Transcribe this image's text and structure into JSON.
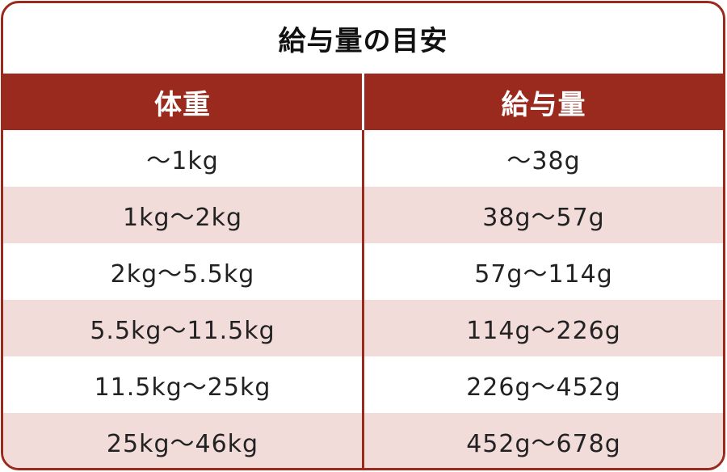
{
  "title": "給与量の目安",
  "headers": [
    "体重",
    "給与量"
  ],
  "rows": [
    [
      "～1kg",
      "～38g"
    ],
    [
      "1kg～2kg",
      "38g～57g"
    ],
    [
      "2kg～5.5kg",
      "57g～114g"
    ],
    [
      "5.5kg～11.5kg",
      "114g～226g"
    ],
    [
      "11.5kg～25kg",
      "226g～452g"
    ],
    [
      "25kg～46kg",
      "452g～678g"
    ]
  ],
  "colors": {
    "accent": "#9a2a1e",
    "stripe": "#f2dcda"
  }
}
